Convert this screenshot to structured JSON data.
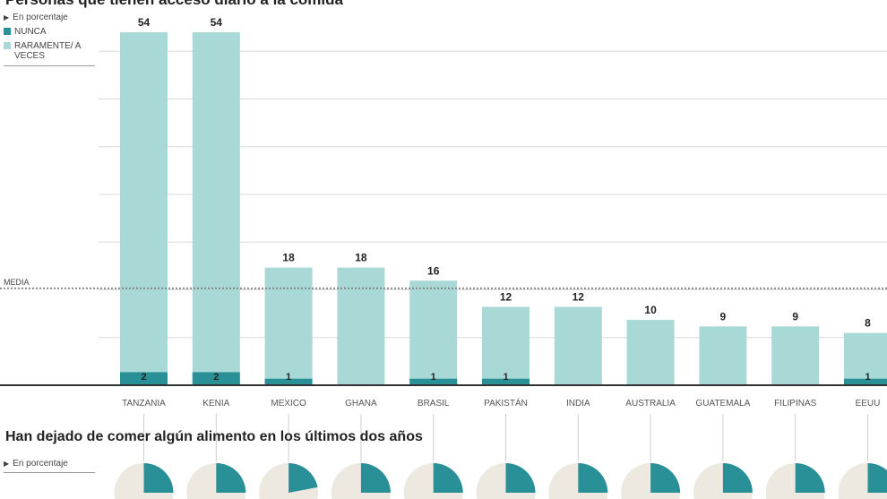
{
  "chart_data": [
    {
      "type": "bar",
      "title": "Personas que tienen acceso diario a la comida",
      "unit_note": "En porcentaje",
      "categories": [
        "TANZANIA",
        "KENIA",
        "MEXICO",
        "GHANA",
        "BRASIL",
        "PAKISTÁN",
        "INDIA",
        "AUSTRALIA",
        "GUATEMALA",
        "FILIPINAS",
        "EEUU"
      ],
      "totals": [
        54,
        54,
        18,
        18,
        16,
        12,
        12,
        10,
        9,
        9,
        8
      ],
      "series": [
        {
          "name": "NUNCA",
          "values": [
            2,
            2,
            1,
            0,
            1,
            1,
            0,
            0,
            0,
            0,
            1
          ],
          "labels": [
            "2",
            "2",
            "1",
            "",
            "1",
            "1",
            "",
            "",
            "",
            "",
            "1"
          ]
        },
        {
          "name": "RARAMENTE/ A VECES",
          "values": [
            52,
            52,
            17,
            18,
            15,
            11,
            12,
            10,
            9,
            9,
            7
          ]
        }
      ],
      "reference_line": {
        "label": "MEDIA",
        "value": 14
      },
      "ylim": [
        0,
        56
      ],
      "grid": true,
      "stacked": true,
      "legend_position": "top-left"
    },
    {
      "type": "pie",
      "title": "Han dejado de comer algún alimento en los últimos dos años",
      "unit_note": "En porcentaje"
    }
  ],
  "colors": {
    "nunca": "#2a9097",
    "raramente": "#a8d9d7",
    "pie_bg": "#ede9e0",
    "grid": "#d8d8d8"
  }
}
